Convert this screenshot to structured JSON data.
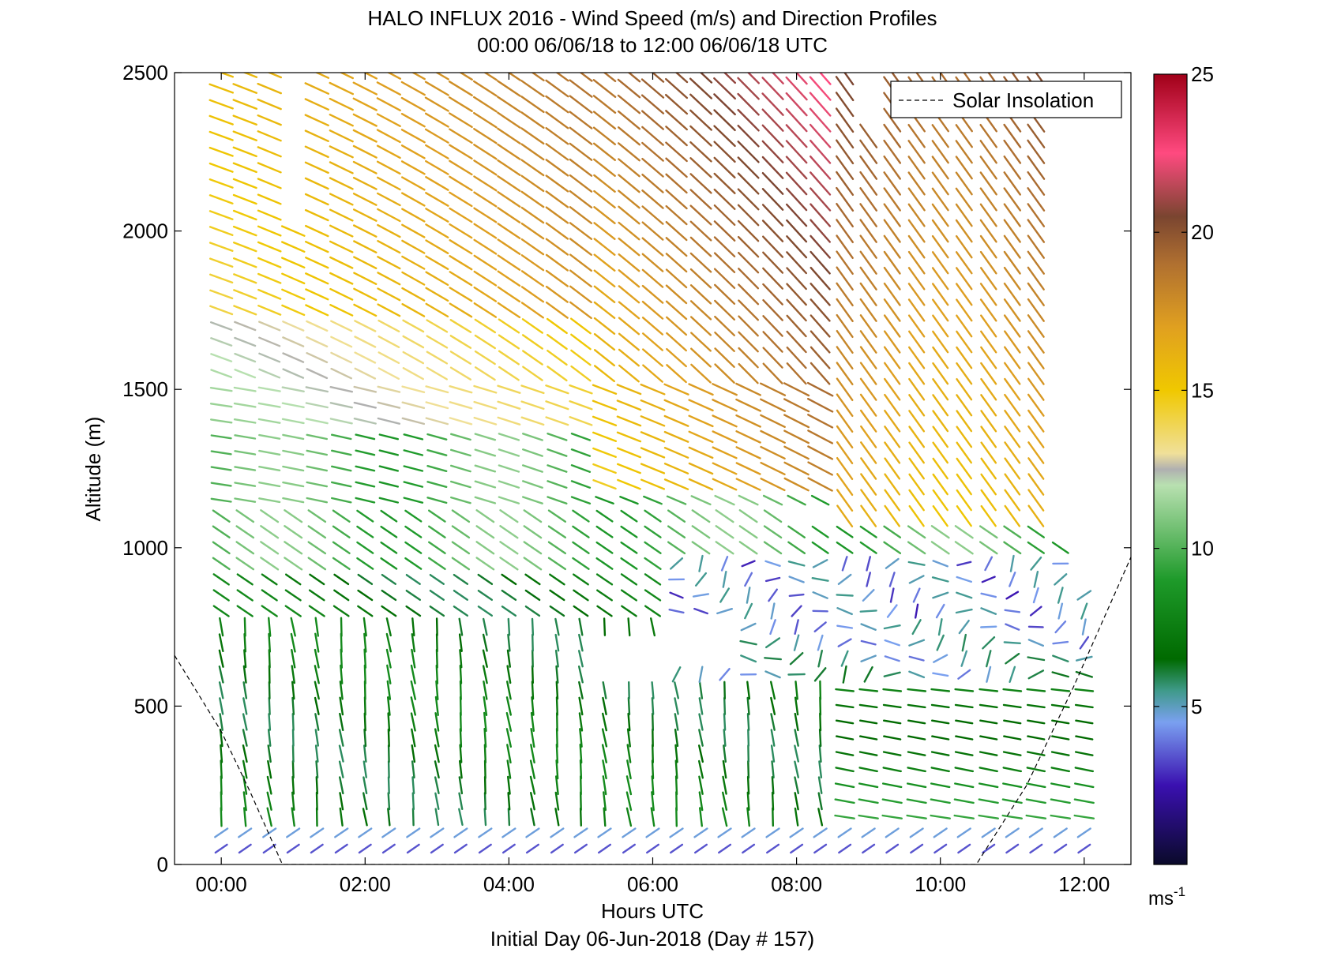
{
  "chart_data": {
    "type": "wind-barb-profile",
    "title": "HALO INFLUX 2016 - Wind Speed (m/s) and Direction Profiles",
    "subtitle": "00:00 06/06/18 to 12:00 06/06/18  UTC",
    "xlabel": "Hours UTC",
    "xlabel2": "Initial Day 06-Jun-2018 (Day # 157)",
    "ylabel": "Altitude (m)",
    "xlim_hours": [
      -0.65,
      12.65
    ],
    "ylim": [
      0,
      2500
    ],
    "x_ticks": [
      {
        "value": 0,
        "label": "00:00"
      },
      {
        "value": 2,
        "label": "02:00"
      },
      {
        "value": 4,
        "label": "04:00"
      },
      {
        "value": 6,
        "label": "06:00"
      },
      {
        "value": 8,
        "label": "08:00"
      },
      {
        "value": 10,
        "label": "10:00"
      },
      {
        "value": 12,
        "label": "12:00"
      }
    ],
    "y_ticks": [
      {
        "value": 0,
        "label": "0"
      },
      {
        "value": 500,
        "label": "500"
      },
      {
        "value": 1000,
        "label": "1000"
      },
      {
        "value": 1500,
        "label": "1500"
      },
      {
        "value": 2000,
        "label": "2000"
      },
      {
        "value": 2500,
        "label": "2500"
      }
    ],
    "legend": {
      "position": "top-right",
      "entries": [
        {
          "label": "Solar Insolation",
          "style": "dashed",
          "color": "#000000"
        }
      ]
    },
    "solar_insolation": [
      [
        -0.65,
        660
      ],
      [
        0,
        420
      ],
      [
        0.4,
        230
      ],
      [
        0.85,
        0
      ],
      [
        10.5,
        0
      ],
      [
        11.2,
        250
      ],
      [
        11.85,
        560
      ],
      [
        12.65,
        970
      ]
    ],
    "colorbar": {
      "range": [
        0,
        25
      ],
      "ticks": [
        {
          "value": 5,
          "label": "5"
        },
        {
          "value": 10,
          "label": "10"
        },
        {
          "value": 15,
          "label": "15"
        },
        {
          "value": 20,
          "label": "20"
        },
        {
          "value": 25,
          "label": "25"
        }
      ],
      "unit_label": "ms",
      "unit_exponent": "-1",
      "stops": [
        {
          "v": 0,
          "c": "#0a0a2a"
        },
        {
          "v": 2.5,
          "c": "#3a10b0"
        },
        {
          "v": 4.5,
          "c": "#7aa0f0"
        },
        {
          "v": 5.5,
          "c": "#3f9a8a"
        },
        {
          "v": 6.5,
          "c": "#006a00"
        },
        {
          "v": 9,
          "c": "#1e9a2a"
        },
        {
          "v": 12,
          "c": "#b8e0b0"
        },
        {
          "v": 12.5,
          "c": "#b0b0b0"
        },
        {
          "v": 13,
          "c": "#f0e09a"
        },
        {
          "v": 15,
          "c": "#f0c800"
        },
        {
          "v": 17,
          "c": "#e0a020"
        },
        {
          "v": 19,
          "c": "#b07030"
        },
        {
          "v": 20.5,
          "c": "#7a4530"
        },
        {
          "v": 22.5,
          "c": "#ff4a80"
        },
        {
          "v": 25,
          "c": "#a00018"
        }
      ]
    },
    "profiles": {
      "times_hours": [
        0,
        0.33,
        0.67,
        1.0,
        1.33,
        1.67,
        2.0,
        2.33,
        2.67,
        3.0,
        3.33,
        3.67,
        4.0,
        4.33,
        4.67,
        5.0,
        5.33,
        5.67,
        6.0,
        6.33,
        6.67,
        7.0,
        7.33,
        7.67,
        8.0,
        8.33,
        8.67,
        9.0,
        9.33,
        9.67,
        10.0,
        10.33,
        10.67,
        11.0,
        11.33,
        11.67,
        12.0
      ],
      "top_altitude_m": [
        2500,
        2500,
        2500,
        2000,
        2500,
        2500,
        2500,
        2500,
        2500,
        2500,
        2500,
        2500,
        2500,
        2500,
        2500,
        2500,
        2500,
        2500,
        2500,
        2500,
        2500,
        2500,
        2500,
        2500,
        2500,
        2500,
        2500,
        2300,
        2500,
        2500,
        2500,
        2500,
        2500,
        2500,
        2500,
        1000,
        850
      ],
      "altitude_step_m": 50
    }
  }
}
